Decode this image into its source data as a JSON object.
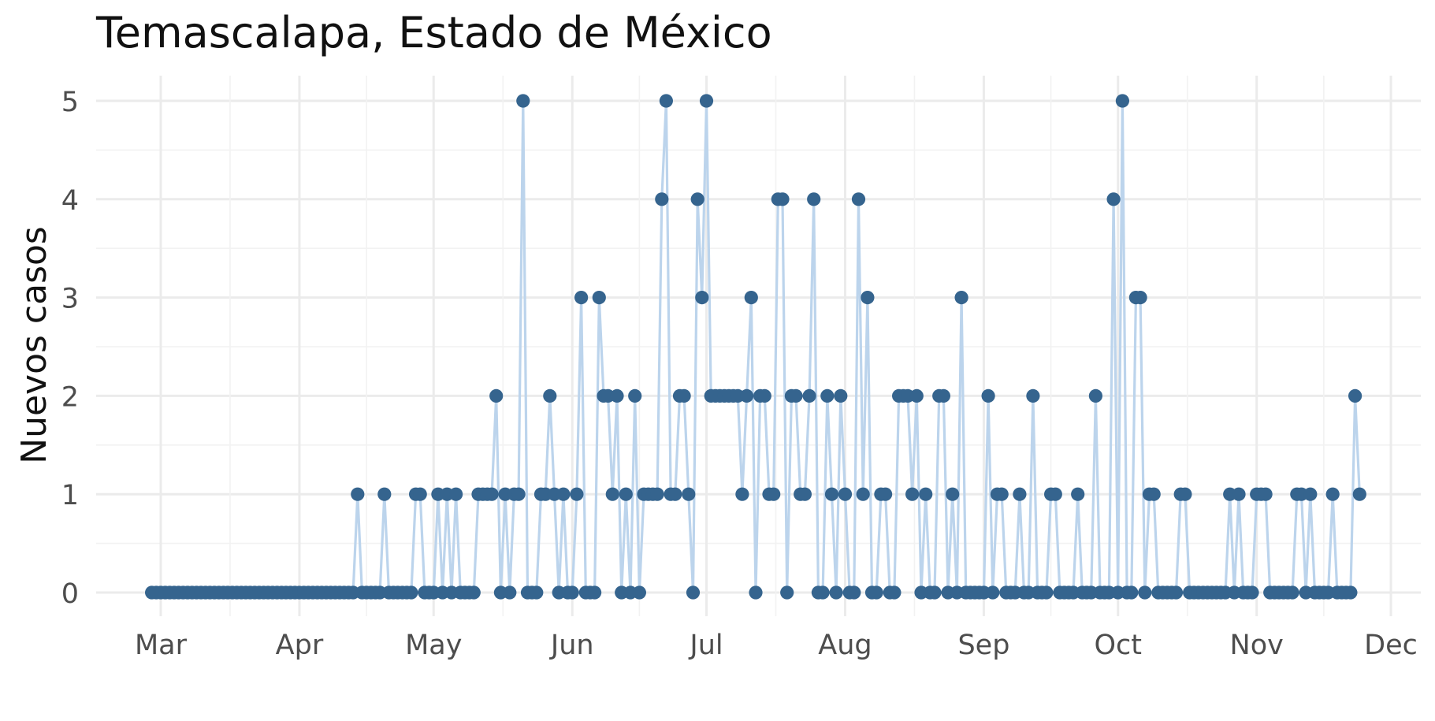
{
  "chart_data": {
    "type": "line",
    "title": "Temascalapa, Estado de México",
    "xlabel": "",
    "ylabel": "Nuevos casos",
    "ylim": [
      0,
      5
    ],
    "yticks": [
      0,
      1,
      2,
      3,
      4,
      5
    ],
    "xlim": [
      "2020-02-28",
      "2020-12-03"
    ],
    "x_ticks": [
      {
        "date": "2020-03-01",
        "label": "Mar"
      },
      {
        "date": "2020-04-01",
        "label": "Apr"
      },
      {
        "date": "2020-05-01",
        "label": "May"
      },
      {
        "date": "2020-06-01",
        "label": "Jun"
      },
      {
        "date": "2020-07-01",
        "label": "Jul"
      },
      {
        "date": "2020-08-01",
        "label": "Aug"
      },
      {
        "date": "2020-09-01",
        "label": "Sep"
      },
      {
        "date": "2020-10-01",
        "label": "Oct"
      },
      {
        "date": "2020-11-01",
        "label": "Nov"
      },
      {
        "date": "2020-12-01",
        "label": "Dec"
      }
    ],
    "grid": true,
    "line_color": "#bcd4ec",
    "point_color": "#35648e",
    "series": [
      {
        "x_start": "2020-02-28",
        "x_step_days": 1,
        "values": [
          0,
          0,
          0,
          0,
          0,
          0,
          0,
          0,
          0,
          0,
          0,
          0,
          0,
          0,
          0,
          0,
          0,
          0,
          0,
          0,
          0,
          0,
          0,
          0,
          0,
          0,
          0,
          0,
          0,
          0,
          0,
          0,
          0,
          0,
          0,
          0,
          0,
          0,
          0,
          0,
          0,
          0,
          0,
          0,
          0,
          0,
          1,
          0,
          0,
          0,
          0,
          0,
          1,
          0,
          0,
          0,
          0,
          0,
          0,
          1,
          1,
          0,
          0,
          0,
          1,
          0,
          1,
          0,
          1,
          0,
          0,
          0,
          0,
          1,
          1,
          1,
          1,
          2,
          0,
          1,
          0,
          1,
          1,
          5,
          0,
          0,
          0,
          1,
          1,
          2,
          1,
          0,
          1,
          0,
          0,
          1,
          3,
          0,
          0,
          0,
          3,
          2,
          2,
          1,
          2,
          0,
          1,
          0,
          2,
          0,
          1,
          1,
          1,
          1,
          4,
          5,
          1,
          1,
          2,
          2,
          1,
          0,
          4,
          3,
          5,
          2,
          2,
          2,
          2,
          2,
          2,
          2,
          1,
          2,
          3,
          0,
          2,
          2,
          1,
          1,
          4,
          4,
          0,
          2,
          2,
          1,
          1,
          2,
          4,
          0,
          0,
          2,
          1,
          0,
          2,
          1,
          0,
          0,
          4,
          1,
          3,
          0,
          0,
          1,
          1,
          0,
          0,
          2,
          2,
          2,
          1,
          2,
          0,
          1,
          0,
          0,
          2,
          2,
          0,
          1,
          0,
          3,
          0,
          0,
          0,
          0,
          0,
          2,
          0,
          1,
          1,
          0,
          0,
          0,
          1,
          0,
          0,
          2,
          0,
          0,
          0,
          1,
          1,
          0,
          0,
          0,
          0,
          1,
          0,
          0,
          0,
          2,
          0,
          0,
          0,
          4,
          0,
          5,
          0,
          0,
          3,
          3,
          0,
          1,
          1,
          0,
          0,
          0,
          0,
          0,
          1,
          1,
          0,
          0,
          0,
          0,
          0,
          0,
          0,
          0,
          0,
          1,
          0,
          1,
          0,
          0,
          0,
          1,
          1,
          1,
          0,
          0,
          0,
          0,
          0,
          0,
          1,
          1,
          0,
          1,
          0,
          0,
          0,
          0,
          1,
          0,
          0,
          0,
          0,
          2,
          1
        ]
      }
    ]
  }
}
